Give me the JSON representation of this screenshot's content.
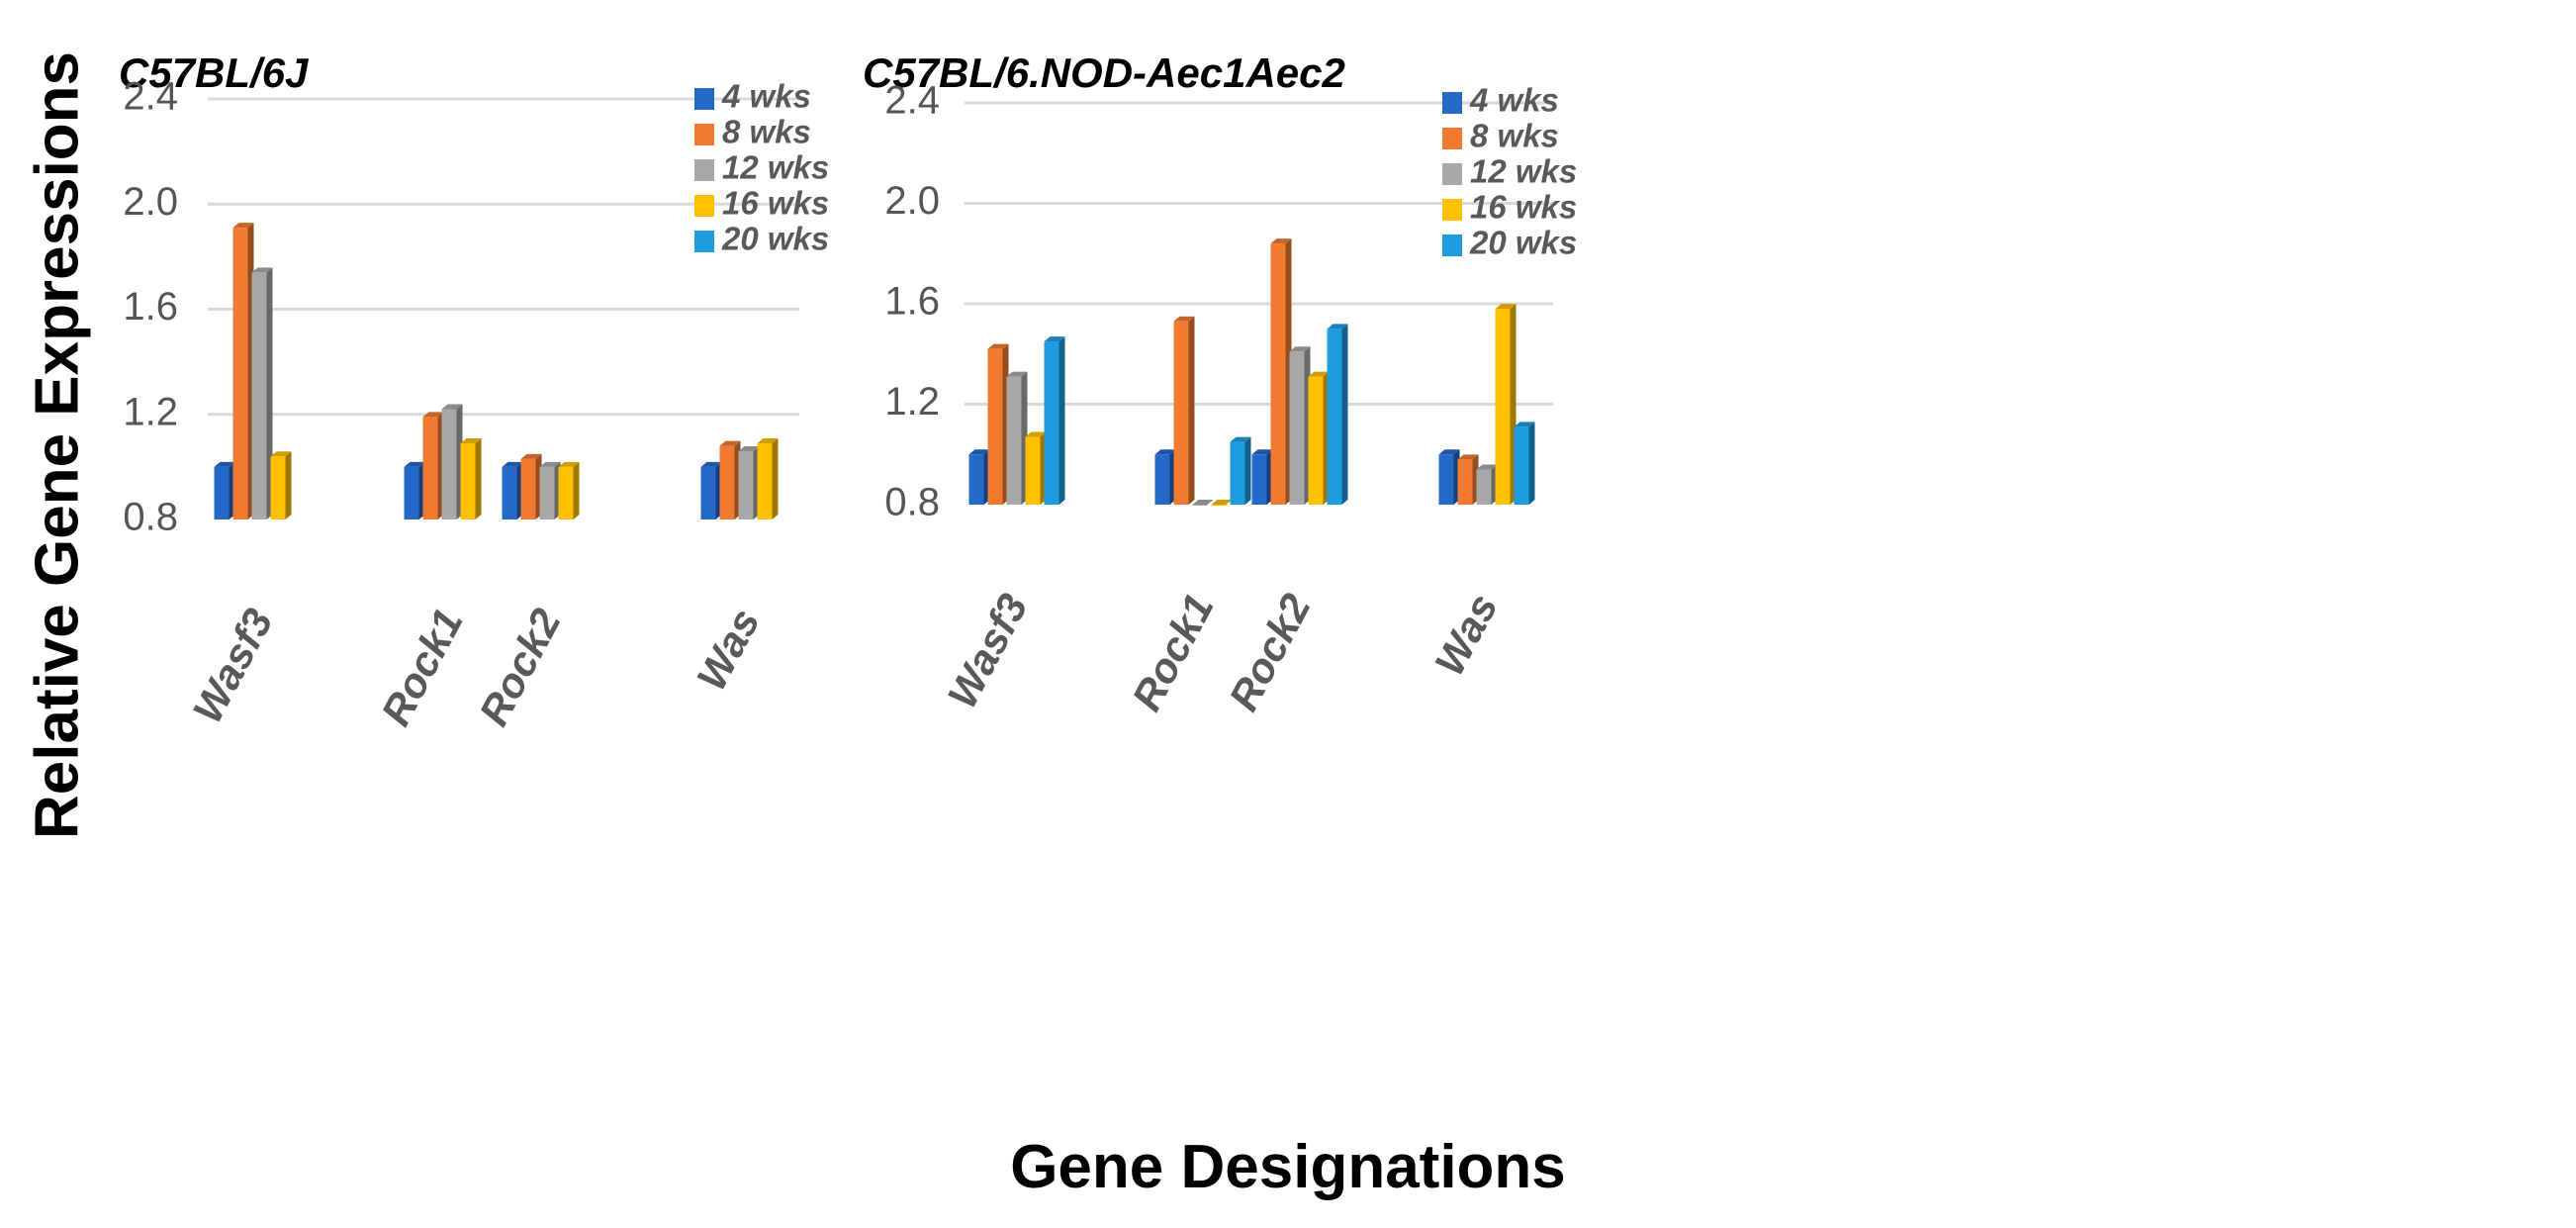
{
  "figure": {
    "ylabel": "Relative Gene Expressions",
    "xlabel": "Gene Designations"
  },
  "chart_data": [
    {
      "type": "bar",
      "title": "C57BL/6J",
      "categories": [
        "Wasf3",
        "Rock1",
        "Rock2",
        "Was"
      ],
      "ylim": [
        0.8,
        2.4
      ],
      "yticks": [
        "0.8",
        "1.2",
        "1.6",
        "2.0",
        "2.4"
      ],
      "grid": true,
      "legend": "top-right",
      "series": [
        {
          "name": "4 wks",
          "color": "#2468C8",
          "values": [
            1.0,
            1.0,
            1.0,
            1.0
          ]
        },
        {
          "name": "8 wks",
          "color": "#F07A30",
          "values": [
            1.91,
            1.19,
            1.03,
            1.08
          ]
        },
        {
          "name": "12 wks",
          "color": "#A8A8A8",
          "values": [
            1.74,
            1.22,
            1.0,
            1.06
          ]
        },
        {
          "name": "16 wks",
          "color": "#FFC000",
          "values": [
            1.04,
            1.09,
            1.0,
            1.09
          ]
        },
        {
          "name": "20 wks",
          "color": "#1E9CE0",
          "values": [
            null,
            null,
            null,
            null
          ]
        }
      ]
    },
    {
      "type": "bar",
      "title": "C57BL/6.NOD-Aec1Aec2",
      "categories": [
        "Wasf3",
        "Rock1",
        "Rock2",
        "Was"
      ],
      "ylim": [
        0.8,
        2.4
      ],
      "yticks": [
        "0.8",
        "1.2",
        "1.6",
        "2.0",
        "2.4"
      ],
      "grid": true,
      "legend": "top-right",
      "series": [
        {
          "name": "4 wks",
          "color": "#2468C8",
          "values": [
            1.0,
            1.0,
            1.0,
            1.0
          ]
        },
        {
          "name": "8 wks",
          "color": "#F07A30",
          "values": [
            1.42,
            1.53,
            1.84,
            0.98
          ]
        },
        {
          "name": "12 wks",
          "color": "#A8A8A8",
          "values": [
            1.31,
            0.8,
            1.41,
            0.94
          ]
        },
        {
          "name": "16 wks",
          "color": "#FFC000",
          "values": [
            1.07,
            0.8,
            1.31,
            1.58
          ]
        },
        {
          "name": "20 wks",
          "color": "#1E9CE0",
          "values": [
            1.45,
            1.05,
            1.5,
            1.11
          ]
        }
      ]
    }
  ]
}
